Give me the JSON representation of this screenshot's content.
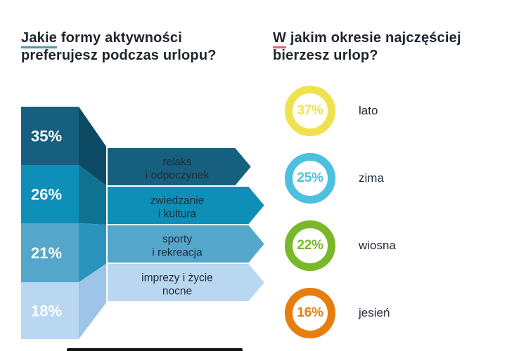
{
  "titles": {
    "left": {
      "lead": "Jakie",
      "line1_rest": " formy aktywności",
      "line2": "preferujesz podczas urlopu?",
      "underline_color": "#4E96AC"
    },
    "right": {
      "lead": "W",
      "line1_rest": " jakim okresie najczęściej",
      "line2": "bierzesz urlop?",
      "underline_color": "#E25D78"
    }
  },
  "chart_data": [
    {
      "type": "bar",
      "title": "Jakie formy aktywności preferujesz podczas urlopu?",
      "orientation": "stacked-vertical-with-arrow-callouts",
      "unit": "%",
      "categories": [
        "relaks i odpoczynek",
        "zwiedzanie i kultura",
        "sporty i rekreacja",
        "imprezy i życie nocne"
      ],
      "values": [
        35,
        26,
        21,
        18
      ],
      "items": [
        {
          "label": "relaks i odpoczynek",
          "label_lines": [
            "relaks",
            "i odpoczynek"
          ],
          "value": 35,
          "pct_text": "35%",
          "color": "#175F7E",
          "fold_color": "#0D4A63"
        },
        {
          "label": "zwiedzanie i kultura",
          "label_lines": [
            "zwiedzanie",
            "i kultura"
          ],
          "value": 26,
          "pct_text": "26%",
          "color": "#0E8FB7",
          "fold_color": "#0F7291"
        },
        {
          "label": "sporty i rekreacja",
          "label_lines": [
            "sporty",
            "i rekreacja"
          ],
          "value": 21,
          "pct_text": "21%",
          "color": "#55A6CB",
          "fold_color": "#2B94BE"
        },
        {
          "label": "imprezy i życie nocne",
          "label_lines": [
            "imprezy i życie",
            "nocne"
          ],
          "value": 18,
          "pct_text": "18%",
          "color": "#B9D7F0",
          "fold_color": "#9CC5E7"
        }
      ],
      "value_label_color": "#FFFFFF",
      "category_label_color": "#1F2C3B",
      "legend": "none",
      "grid": "off"
    },
    {
      "type": "pie",
      "title": "W jakim okresie najczęściej bierzesz urlop?",
      "style": "donut-ring-badges",
      "unit": "%",
      "categories": [
        "lato",
        "zima",
        "wiosna",
        "jesień"
      ],
      "values": [
        37,
        25,
        22,
        16
      ],
      "items": [
        {
          "label": "lato",
          "value": 37,
          "pct_text": "37%",
          "color": "#F0E24E"
        },
        {
          "label": "zima",
          "value": 25,
          "pct_text": "25%",
          "color": "#4CC0DE"
        },
        {
          "label": "wiosna",
          "value": 22,
          "pct_text": "22%",
          "color": "#79B829"
        },
        {
          "label": "jesień",
          "value": 16,
          "pct_text": "16%",
          "color": "#E67E0E"
        }
      ],
      "label_color": "#222B3A",
      "legend": "labels-right",
      "grid": "off"
    }
  ]
}
